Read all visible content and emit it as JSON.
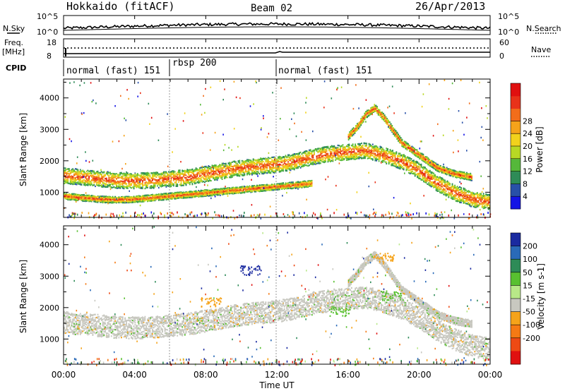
{
  "header": {
    "station": "Hokkaido (fitACF)",
    "beam": "Beam 02",
    "date": "26/Apr/2013"
  },
  "top_strip": {
    "left_label": "N.Sky",
    "right_label": "N.Search",
    "left_ticks": [
      "10^5",
      "10^0"
    ],
    "right_ticks": [
      "10^5",
      "10^0"
    ]
  },
  "freq_strip": {
    "left_label_1": "Freq.",
    "left_label_2": "[MHz]",
    "left_ticks": [
      "18",
      "8"
    ],
    "right_label": "Nave",
    "right_ticks": [
      "60",
      "0"
    ]
  },
  "cpid": {
    "label": "CPID",
    "segments": [
      {
        "label": "normal (fast) 151",
        "start_h": 0,
        "end_h": 6
      },
      {
        "label": "rbsp 200",
        "start_h": 6,
        "end_h": 12
      },
      {
        "label": "normal (fast) 151",
        "start_h": 12,
        "end_h": 24
      }
    ]
  },
  "x_axis": {
    "label": "Time UT",
    "ticks": [
      "00:00",
      "04:00",
      "08:00",
      "12:00",
      "16:00",
      "20:00",
      "00:00"
    ]
  },
  "chart_data": [
    {
      "type": "heatmap",
      "title": "Power",
      "ylabel": "Slant Range [km]",
      "xlabel": "Time UT",
      "xlim": [
        0,
        24
      ],
      "ylim": [
        200,
        4600
      ],
      "y_ticks": [
        1000,
        2000,
        3000,
        4000
      ],
      "colorbar": {
        "label": "Power [dB]",
        "ticks": [
          "4",
          "8",
          "12",
          "16",
          "20",
          "24",
          "28"
        ],
        "colors": [
          "#1414e6",
          "#2850a8",
          "#2e8b57",
          "#55b83a",
          "#b8d824",
          "#f2d21c",
          "#f5a31a",
          "#f26d1a",
          "#e8321a",
          "#e01010"
        ]
      },
      "bands": [
        {
          "points": [
            [
              0,
              1550
            ],
            [
              1,
              1500
            ],
            [
              2,
              1450
            ],
            [
              3,
              1400
            ],
            [
              4,
              1380
            ],
            [
              5,
              1400
            ],
            [
              6,
              1450
            ],
            [
              7,
              1500
            ],
            [
              8,
              1600
            ],
            [
              9,
              1700
            ],
            [
              10,
              1800
            ],
            [
              11,
              1850
            ],
            [
              12,
              1900
            ],
            [
              13,
              2000
            ],
            [
              14,
              2150
            ],
            [
              15,
              2250
            ],
            [
              16,
              2300
            ],
            [
              17,
              2350
            ],
            [
              18,
              2200
            ],
            [
              19,
              2000
            ],
            [
              20,
              1700
            ],
            [
              21,
              1300
            ],
            [
              22,
              1000
            ],
            [
              23,
              800
            ],
            [
              24,
              700
            ]
          ],
          "thickness": 500
        },
        {
          "points": [
            [
              0,
              900
            ],
            [
              1,
              850
            ],
            [
              2,
              800
            ],
            [
              3,
              780
            ],
            [
              4,
              800
            ],
            [
              5,
              850
            ],
            [
              6,
              900
            ],
            [
              7,
              950
            ],
            [
              8,
              1000
            ],
            [
              9,
              1050
            ],
            [
              10,
              1100
            ],
            [
              11,
              1150
            ],
            [
              12,
              1200
            ],
            [
              13,
              1250
            ],
            [
              14,
              1300
            ]
          ],
          "thickness": 200
        },
        {
          "points": [
            [
              16,
              2800
            ],
            [
              16.5,
              3100
            ],
            [
              17,
              3500
            ],
            [
              17.5,
              3700
            ],
            [
              18,
              3400
            ],
            [
              18.5,
              3000
            ],
            [
              19,
              2600
            ],
            [
              20,
              2200
            ],
            [
              21,
              1800
            ],
            [
              22,
              1600
            ],
            [
              23,
              1500
            ]
          ],
          "thickness": 220
        }
      ]
    },
    {
      "type": "heatmap",
      "title": "Velocity",
      "ylabel": "Slant Range [km]",
      "xlabel": "Time UT",
      "xlim": [
        0,
        24
      ],
      "ylim": [
        200,
        4600
      ],
      "y_ticks": [
        1000,
        2000,
        3000,
        4000
      ],
      "colorbar": {
        "label": "Velocity [m s-1]",
        "ticks": [
          "200",
          "100",
          "50",
          "15",
          "-15",
          "-50",
          "-100",
          "-200"
        ],
        "colors": [
          "#1a2aa0",
          "#2a6ab8",
          "#2e8b57",
          "#58c030",
          "#b8e888",
          "#c8c8c0",
          "#f5a31a",
          "#f57a14",
          "#ee4a14",
          "#e01010"
        ]
      },
      "bands": [
        {
          "points": [
            [
              0,
              1550
            ],
            [
              1,
              1500
            ],
            [
              2,
              1450
            ],
            [
              3,
              1400
            ],
            [
              4,
              1380
            ],
            [
              5,
              1400
            ],
            [
              6,
              1450
            ],
            [
              7,
              1500
            ],
            [
              8,
              1600
            ],
            [
              9,
              1700
            ],
            [
              10,
              1800
            ],
            [
              11,
              1850
            ],
            [
              12,
              1900
            ],
            [
              13,
              2000
            ],
            [
              14,
              2150
            ],
            [
              15,
              2250
            ],
            [
              16,
              2300
            ],
            [
              17,
              2350
            ],
            [
              18,
              2200
            ],
            [
              19,
              2000
            ],
            [
              20,
              1700
            ],
            [
              21,
              1300
            ],
            [
              22,
              1000
            ],
            [
              23,
              800
            ],
            [
              24,
              700
            ]
          ],
          "thickness": 700
        },
        {
          "points": [
            [
              16,
              2800
            ],
            [
              16.5,
              3100
            ],
            [
              17,
              3500
            ],
            [
              17.5,
              3700
            ],
            [
              18,
              3400
            ],
            [
              18.5,
              3000
            ],
            [
              19,
              2600
            ],
            [
              20,
              2200
            ],
            [
              21,
              1800
            ],
            [
              22,
              1600
            ],
            [
              23,
              1500
            ]
          ],
          "thickness": 240
        }
      ],
      "highlights": [
        {
          "x": 10.5,
          "y": 3200,
          "color": "#1a2aa0"
        },
        {
          "x": 8.3,
          "y": 2200,
          "color": "#f5a31a"
        },
        {
          "x": 18.0,
          "y": 3600,
          "color": "#f5a31a"
        },
        {
          "x": 18.5,
          "y": 2400,
          "color": "#58c030"
        },
        {
          "x": 15.5,
          "y": 1900,
          "color": "#58c030"
        }
      ]
    }
  ]
}
